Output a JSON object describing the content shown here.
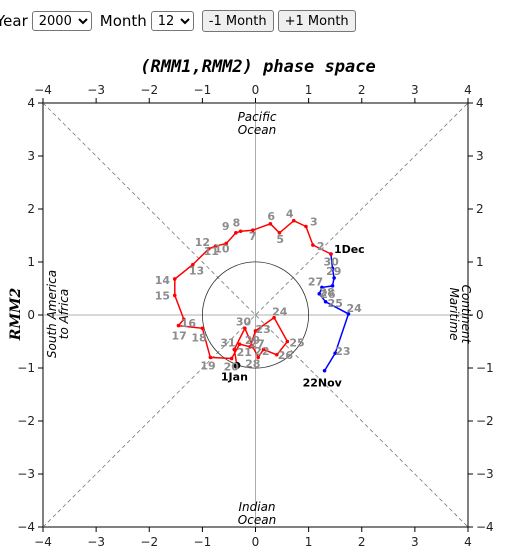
{
  "controls": {
    "year_label": "Year",
    "year_value": "2000",
    "month_label": "Month",
    "month_value": "12",
    "prev_label": "-1 Month",
    "next_label": "+1 Month"
  },
  "colors": {
    "nov": "#0000ff",
    "dec": "#ff0000",
    "jan": "#ff0000",
    "day_label": "#8c8c8c"
  },
  "chart_data": {
    "type": "line",
    "title": "(RMM1,RMM2) phase space",
    "xlabel": "",
    "ylabel": "RMM2",
    "xlim": [
      -4,
      4
    ],
    "ylim": [
      -4,
      4
    ],
    "ticks": [
      "−4",
      "−3",
      "−2",
      "−1",
      "0",
      "1",
      "2",
      "3",
      "4"
    ],
    "grid": "dashed diagonals and center cross",
    "unit_circle_radius": 1,
    "regions": {
      "top": [
        "Pacific",
        "Ocean"
      ],
      "bottom": [
        "Indian",
        "Ocean"
      ],
      "left": [
        "South America",
        "to Africa"
      ],
      "right": [
        "Maritime",
        "Continent"
      ]
    },
    "series": [
      {
        "month": "nov",
        "points": [
          {
            "x": 1.3,
            "y": -1.05,
            "label": "22Nov"
          },
          {
            "x": 1.5,
            "y": -0.72,
            "label": "23"
          },
          {
            "x": 1.75,
            "y": 0.02,
            "label": "24"
          },
          {
            "x": 1.32,
            "y": 0.25,
            "label": "25"
          },
          {
            "x": 1.2,
            "y": 0.4,
            "label": "26"
          },
          {
            "x": 1.25,
            "y": 0.52,
            "label": "27"
          },
          {
            "x": 1.45,
            "y": 0.55,
            "label": "28"
          },
          {
            "x": 1.48,
            "y": 0.7,
            "label": "29"
          },
          {
            "x": 1.45,
            "y": 0.88,
            "label": "30"
          },
          {
            "x": 1.42,
            "y": 1.15,
            "label": "1Dec"
          }
        ]
      },
      {
        "month": "dec",
        "points": [
          {
            "x": 1.42,
            "y": 1.15,
            "label": "1Dec"
          },
          {
            "x": 1.08,
            "y": 1.32,
            "label": "2"
          },
          {
            "x": 0.95,
            "y": 1.67,
            "label": "3"
          },
          {
            "x": 0.72,
            "y": 1.78,
            "label": "4"
          },
          {
            "x": 0.45,
            "y": 1.55,
            "label": "5"
          },
          {
            "x": 0.28,
            "y": 1.72,
            "label": "6"
          },
          {
            "x": -0.05,
            "y": 1.6,
            "label": "7"
          },
          {
            "x": -0.28,
            "y": 1.58,
            "label": "8"
          },
          {
            "x": -0.37,
            "y": 1.55,
            "label": "9"
          },
          {
            "x": -0.55,
            "y": 1.35,
            "label": "10"
          },
          {
            "x": -0.75,
            "y": 1.3,
            "label": "11"
          },
          {
            "x": -0.88,
            "y": 1.25,
            "label": "12"
          },
          {
            "x": -1.18,
            "y": 0.95,
            "label": "13"
          },
          {
            "x": -1.52,
            "y": 0.68,
            "label": "14"
          },
          {
            "x": -1.52,
            "y": 0.37,
            "label": "15"
          },
          {
            "x": -1.35,
            "y": -0.08,
            "label": "16"
          },
          {
            "x": -1.45,
            "y": -0.2,
            "label": "17"
          },
          {
            "x": -1.0,
            "y": -0.25,
            "label": "18"
          },
          {
            "x": -0.85,
            "y": -0.8,
            "label": "19"
          },
          {
            "x": -0.45,
            "y": -0.82,
            "label": "20"
          },
          {
            "x": -0.3,
            "y": -0.55,
            "label": "21"
          },
          {
            "x": -0.1,
            "y": -0.6,
            "label": "22"
          },
          {
            "x": 0.0,
            "y": -0.3,
            "label": "23"
          },
          {
            "x": 0.35,
            "y": -0.05,
            "label": "24"
          },
          {
            "x": 0.6,
            "y": -0.5,
            "label": "25"
          },
          {
            "x": 0.4,
            "y": -0.75,
            "label": "26"
          },
          {
            "x": 0.15,
            "y": -0.65,
            "label": "27"
          },
          {
            "x": 0.05,
            "y": -0.8,
            "label": "28"
          },
          {
            "x": -0.05,
            "y": -0.6,
            "label": "29"
          },
          {
            "x": -0.2,
            "y": -0.25,
            "label": "30"
          },
          {
            "x": -0.4,
            "y": -0.65,
            "label": "31"
          },
          {
            "x": -0.35,
            "y": -0.95,
            "label": "1Jan"
          }
        ]
      }
    ],
    "end_marker": {
      "x": -0.35,
      "y": -0.95
    }
  }
}
